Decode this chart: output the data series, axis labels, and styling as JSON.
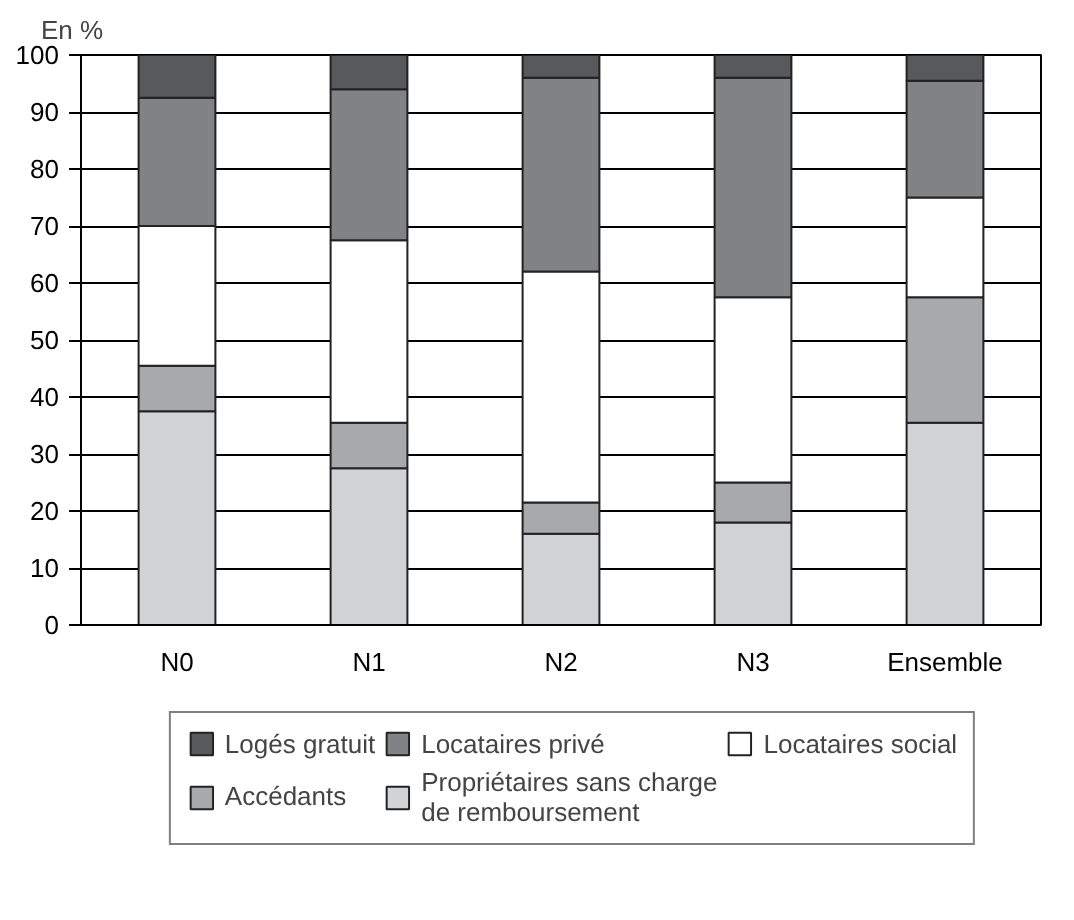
{
  "chart_data": {
    "type": "bar",
    "stacked": true,
    "ylabel": "En %",
    "categories": [
      "N0",
      "N1",
      "N2",
      "N3",
      "Ensemble"
    ],
    "series": [
      {
        "name": "Propriétaires sans charge\nde remboursement",
        "color": "#d1d3d4",
        "values": [
          37.5,
          27.5,
          16,
          18,
          35.5
        ]
      },
      {
        "name": "Accédants",
        "color": "#a7a9ac",
        "values": [
          8,
          8,
          5.5,
          7,
          22
        ]
      },
      {
        "name": "Locataires social",
        "color": "#ffffff",
        "values": [
          24.5,
          32,
          40.5,
          32.5,
          17.5
        ]
      },
      {
        "name": "Locataires privé",
        "color": "#808285",
        "values": [
          22.5,
          26.5,
          34,
          38.5,
          20.5
        ]
      },
      {
        "name": "Logés gratuit",
        "color": "#58595b",
        "values": [
          7.5,
          6,
          4,
          4,
          4.5
        ]
      }
    ],
    "ylim": [
      0,
      100
    ],
    "yticks": [
      0,
      10,
      20,
      30,
      40,
      50,
      60,
      70,
      80,
      90,
      100
    ],
    "grid": "y",
    "legend": "bottom"
  }
}
